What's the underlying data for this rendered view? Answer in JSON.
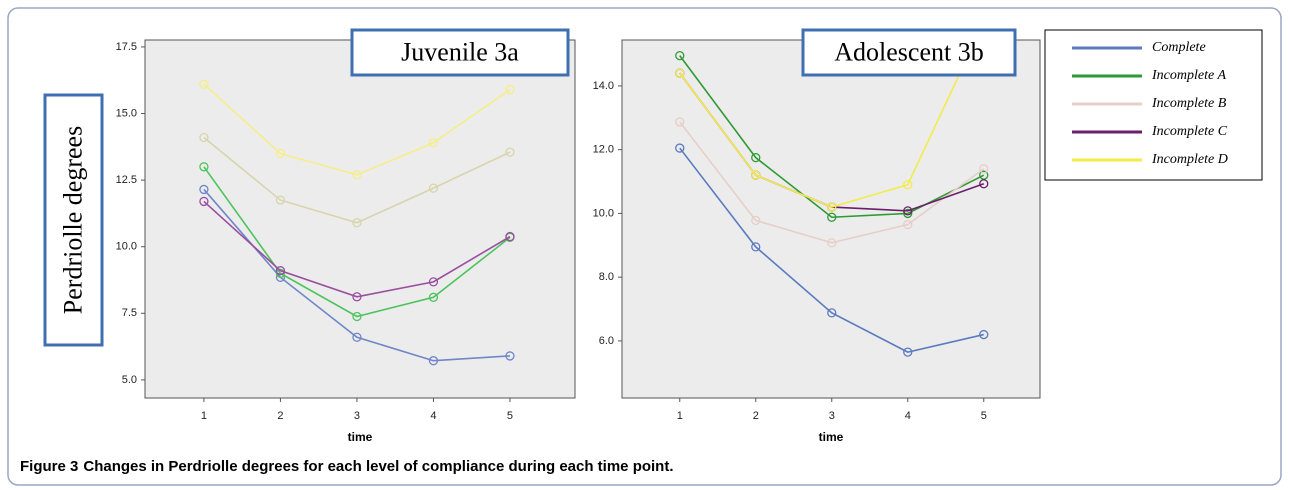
{
  "chart_data": [
    {
      "type": "line",
      "title": "Juvenile 3a",
      "x_label": "time",
      "y_label": "Perdriolle degrees",
      "x": [
        1,
        2,
        3,
        4,
        5
      ],
      "xlim": [
        0.23,
        5.85
      ],
      "xticks": [
        1,
        2,
        3,
        4,
        5
      ],
      "ylim": [
        4.32,
        17.76
      ],
      "yticks": [
        {
          "value": 5,
          "label": "5.0"
        },
        {
          "value": 7.5,
          "label": "7.5"
        },
        {
          "value": 10,
          "label": "10.0"
        },
        {
          "value": 12.5,
          "label": "12.5"
        },
        {
          "value": 15,
          "label": "15.0"
        },
        {
          "value": 17.5,
          "label": "17.5"
        }
      ],
      "series": [
        {
          "color": "#6f86c8",
          "values": [
            12.15,
            8.85,
            6.6,
            5.72,
            5.9
          ]
        },
        {
          "color": "#4cc45c",
          "values": [
            13.0,
            9.0,
            7.38,
            8.1,
            10.35
          ]
        },
        {
          "color": "#d8d4ac",
          "values": [
            14.1,
            11.75,
            10.9,
            12.2,
            13.55
          ]
        },
        {
          "color": "#9a4ea0",
          "values": [
            11.7,
            9.1,
            8.12,
            8.68,
            10.38
          ]
        },
        {
          "color": "#f5ee88",
          "values": [
            16.1,
            13.5,
            12.7,
            13.9,
            15.9
          ]
        }
      ]
    },
    {
      "type": "line",
      "title": "Adolescent 3b",
      "x_label": "time",
      "x": [
        1,
        2,
        3,
        4,
        5
      ],
      "xlim": [
        0.24,
        5.74
      ],
      "xticks": [
        1,
        2,
        3,
        4,
        5
      ],
      "ylim": [
        4.21,
        15.44
      ],
      "yticks": [
        {
          "value": 6,
          "label": "6.0"
        },
        {
          "value": 8,
          "label": "8.0"
        },
        {
          "value": 10,
          "label": "10.0"
        },
        {
          "value": 12,
          "label": "12.0"
        },
        {
          "value": 14,
          "label": "14.0"
        }
      ],
      "series": [
        {
          "name": "Complete",
          "color": "#5b7bc0",
          "values": [
            12.05,
            8.95,
            6.88,
            5.65,
            6.2
          ]
        },
        {
          "name": "Incomplete A",
          "color": "#2e9a34",
          "values": [
            14.95,
            11.75,
            9.88,
            10.0,
            11.2
          ]
        },
        {
          "name": "Incomplete B",
          "color": "#e6cfc8",
          "values": [
            12.87,
            9.78,
            9.08,
            9.65,
            11.4
          ]
        },
        {
          "name": "Incomplete C",
          "color": "#6b1f6b",
          "values": [
            14.4,
            11.2,
            10.2,
            10.08,
            10.93
          ]
        },
        {
          "name": "Incomplete D",
          "color": "#f2ec4a",
          "values": [
            14.4,
            11.2,
            10.2,
            10.9,
            16.0
          ]
        }
      ]
    }
  ],
  "caption": {
    "label": "Figure 3",
    "text": "Changes in Perdriolle degrees for each level of compliance during each time point."
  }
}
